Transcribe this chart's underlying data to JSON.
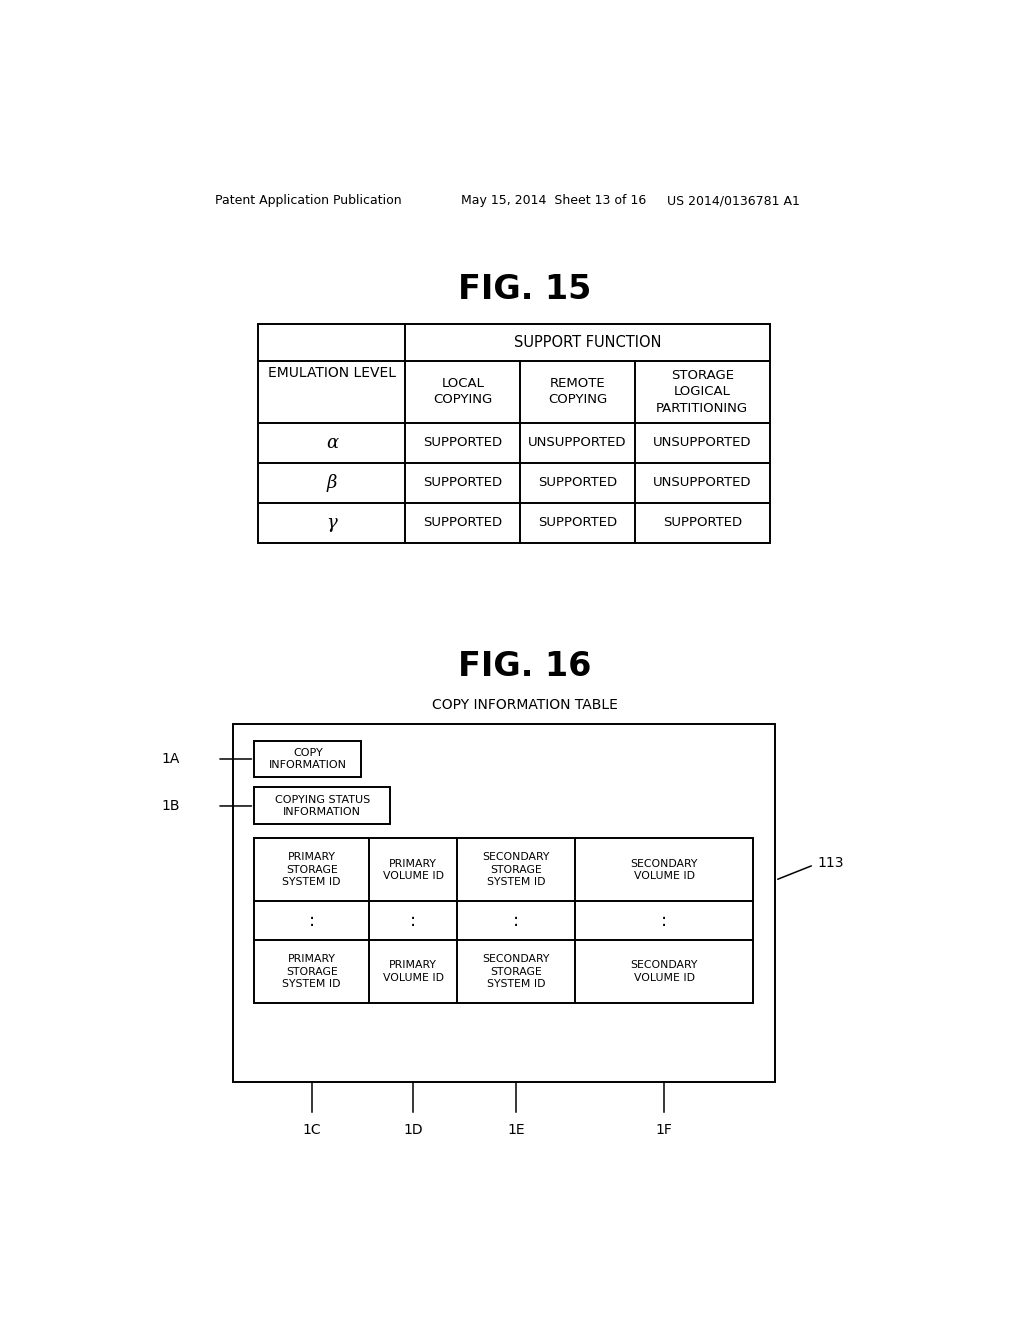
{
  "bg_color": "#ffffff",
  "header_left": "Patent Application Publication",
  "header_mid": "May 15, 2014  Sheet 13 of 16",
  "header_right": "US 2014/0136781 A1",
  "fig15_title": "FIG. 15",
  "fig16_title": "FIG. 16",
  "fig16_subtitle": "COPY INFORMATION TABLE",
  "table15": {
    "col_header_top": "SUPPORT FUNCTION",
    "col_header_left": "EMULATION LEVEL",
    "col_headers": [
      "LOCAL\nCOPYING",
      "REMOTE\nCOPYING",
      "STORAGE\nLOGICAL\nPARTITIONING"
    ],
    "rows": [
      [
        "α",
        "SUPPORTED",
        "UNSUPPORTED",
        "UNSUPPORTED"
      ],
      [
        "β",
        "SUPPORTED",
        "SUPPORTED",
        "UNSUPPORTED"
      ],
      [
        "γ",
        "SUPPORTED",
        "SUPPORTED",
        "SUPPORTED"
      ]
    ]
  },
  "fig16_table_cols": [
    "PRIMARY\nSTORAGE\nSYSTEM ID",
    "PRIMARY\nVOLUME ID",
    "SECONDARY\nSTORAGE\nSYSTEM ID",
    "SECONDARY\nVOLUME ID"
  ]
}
